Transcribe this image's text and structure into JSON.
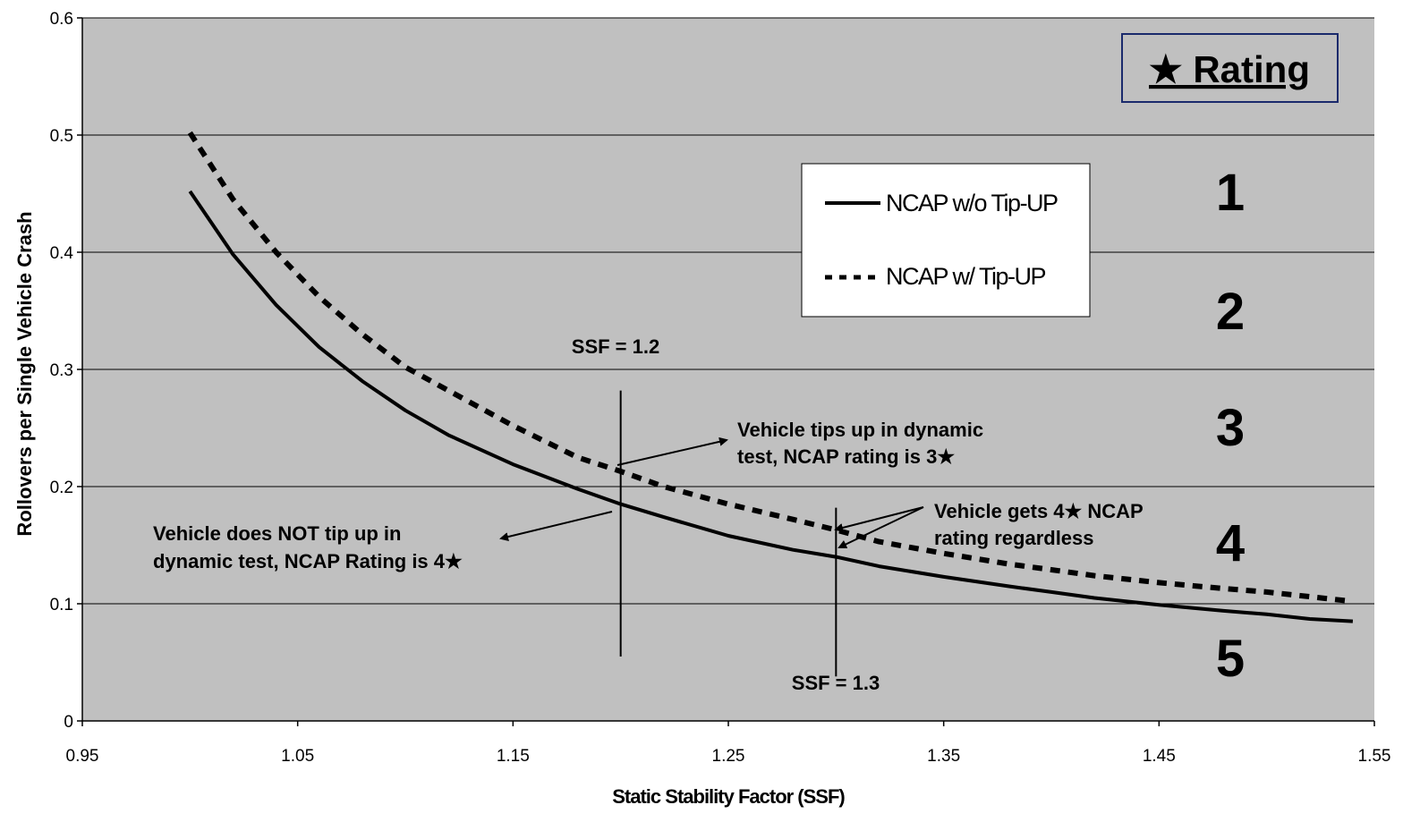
{
  "chart_data": {
    "type": "line",
    "xlabel": "Static Stability Factor (SSF)",
    "ylabel": "Rollovers per Single Vehicle Crash",
    "xlim": [
      0.95,
      1.55
    ],
    "ylim": [
      0,
      0.6
    ],
    "x_ticks": [
      "0.95",
      "1.05",
      "1.15",
      "1.25",
      "1.35",
      "1.45",
      "1.55"
    ],
    "y_ticks": [
      "0",
      "0.1",
      "0.2",
      "0.3",
      "0.4",
      "0.5",
      "0.6"
    ],
    "grid": "horizontal",
    "background": "#c0c0c0",
    "legend_position": "upper-middle-right",
    "series": [
      {
        "name": "NCAP w/o Tip-UP",
        "style": "solid",
        "x": [
          1.0,
          1.02,
          1.04,
          1.06,
          1.08,
          1.1,
          1.12,
          1.15,
          1.18,
          1.2,
          1.22,
          1.25,
          1.28,
          1.3,
          1.32,
          1.35,
          1.38,
          1.4,
          1.42,
          1.45,
          1.48,
          1.5,
          1.52,
          1.54
        ],
        "y": [
          0.452,
          0.398,
          0.355,
          0.319,
          0.29,
          0.265,
          0.244,
          0.219,
          0.198,
          0.185,
          0.174,
          0.158,
          0.146,
          0.14,
          0.132,
          0.123,
          0.115,
          0.11,
          0.105,
          0.099,
          0.094,
          0.091,
          0.087,
          0.085
        ]
      },
      {
        "name": "NCAP w/ Tip-UP",
        "style": "dotted",
        "x": [
          1.0,
          1.02,
          1.04,
          1.06,
          1.08,
          1.1,
          1.12,
          1.15,
          1.18,
          1.2,
          1.22,
          1.25,
          1.28,
          1.3,
          1.32,
          1.35,
          1.38,
          1.4,
          1.42,
          1.45,
          1.48,
          1.5,
          1.52,
          1.54
        ],
        "y": [
          0.502,
          0.445,
          0.4,
          0.362,
          0.33,
          0.302,
          0.282,
          0.252,
          0.225,
          0.213,
          0.2,
          0.185,
          0.172,
          0.163,
          0.153,
          0.143,
          0.134,
          0.129,
          0.124,
          0.118,
          0.113,
          0.11,
          0.106,
          0.102
        ]
      }
    ],
    "rating": {
      "title": "★ Rating",
      "levels": [
        "1",
        "2",
        "3",
        "4",
        "5"
      ]
    },
    "markers": [
      {
        "x": 1.2,
        "label": "SSF = 1.2"
      },
      {
        "x": 1.3,
        "label": "SSF = 1.3"
      }
    ],
    "annotations": {
      "tips_up": [
        "Vehicle tips up in dynamic",
        "test, NCAP rating is 3★"
      ],
      "not_tip": [
        "Vehicle does NOT tip up in",
        "dynamic test, NCAP Rating is 4★"
      ],
      "gets_4": [
        "Vehicle gets 4★ NCAP",
        "rating regardless"
      ]
    }
  }
}
